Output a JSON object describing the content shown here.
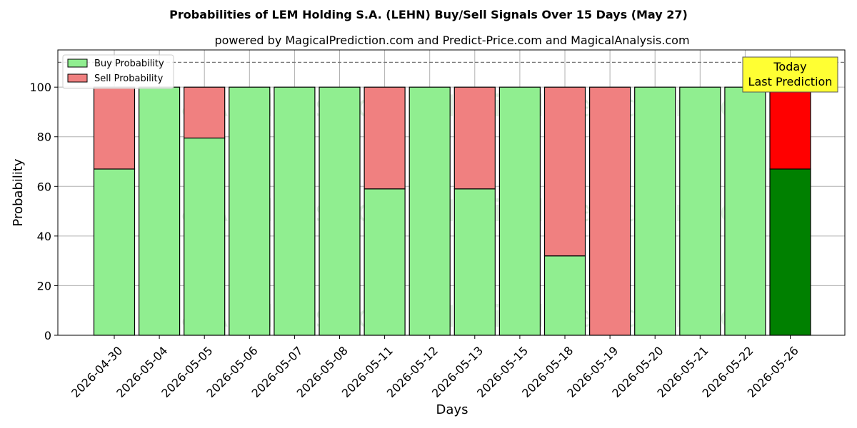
{
  "chart_data": {
    "type": "bar",
    "stacked": true,
    "title": "Probabilities of LEM Holding S.A. (LEHN) Buy/Sell Signals Over 15 Days (May 27)",
    "subtitle": "powered by MagicalPrediction.com and Predict-Price.com and MagicalAnalysis.com",
    "xlabel": "Days",
    "ylabel": "Probability",
    "ylim": [
      0,
      115
    ],
    "yticks": [
      0,
      20,
      40,
      60,
      80,
      100
    ],
    "grid": true,
    "reference_line": 110,
    "legend_position": "top-left",
    "categories": [
      "2026-04-30",
      "2026-05-04",
      "2026-05-05",
      "2026-05-06",
      "2026-05-07",
      "2026-05-08",
      "2026-05-11",
      "2026-05-12",
      "2026-05-13",
      "2026-05-15",
      "2026-05-18",
      "2026-05-19",
      "2026-05-20",
      "2026-05-21",
      "2026-05-22",
      "2026-05-26"
    ],
    "series": [
      {
        "name": "Buy Probability",
        "color": "#90ee90",
        "highlight_color": "#008000",
        "values": [
          67,
          100,
          79.5,
          100,
          100,
          100,
          59,
          100,
          59,
          100,
          32,
          0,
          100,
          100,
          100,
          67
        ]
      },
      {
        "name": "Sell Probability",
        "color": "#f08080",
        "highlight_color": "#ff0000",
        "values": [
          33,
          0,
          20.5,
          0,
          0,
          0,
          41,
          0,
          41,
          0,
          68,
          100,
          0,
          0,
          0,
          33
        ]
      }
    ],
    "highlight_index": 15,
    "annotation": {
      "lines": [
        "Today",
        "Last Prediction"
      ],
      "background": "#ffff33"
    },
    "watermarks": [
      "MagicalAnalysis.com",
      "MagicalPrediction.com"
    ]
  }
}
